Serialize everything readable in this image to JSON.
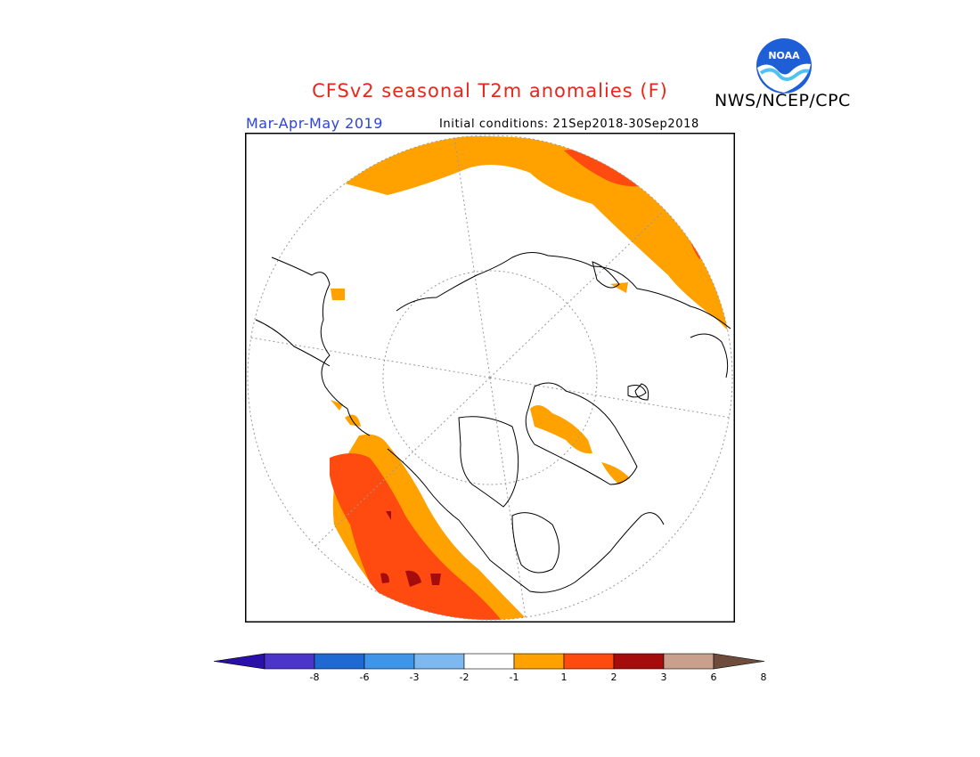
{
  "header": {
    "title": "CFSv2 seasonal T2m anomalies (F)",
    "agency": "NWS/NCEP/CPC",
    "season": "Mar-Apr-May 2019",
    "initial_conditions": "Initial conditions: 21Sep2018-30Sep2018",
    "logo_text": "NOAA"
  },
  "colors": {
    "title": "#e8261b",
    "season": "#2b44e0",
    "logo_blue": "#1e5fd8"
  },
  "map": {
    "projection": "north polar stereographic",
    "features": [
      "coastlines",
      "graticule",
      "anomaly-shading"
    ]
  },
  "legend": {
    "bins": [
      {
        "color": "#2a0fa8"
      },
      {
        "color": "#4a35c8"
      },
      {
        "color": "#1f6ad2"
      },
      {
        "color": "#3f95e8"
      },
      {
        "color": "#7db8f0"
      },
      {
        "color": "#ffffff"
      },
      {
        "color": "#ffa200"
      },
      {
        "color": "#ff4a10"
      },
      {
        "color": "#a50d0d"
      },
      {
        "color": "#c8a08c"
      },
      {
        "color": "#6e4b3a"
      }
    ],
    "tick_labels": [
      "-8",
      "-6",
      "-3",
      "-2",
      "-1",
      "1",
      "2",
      "3",
      "6",
      "8"
    ]
  }
}
